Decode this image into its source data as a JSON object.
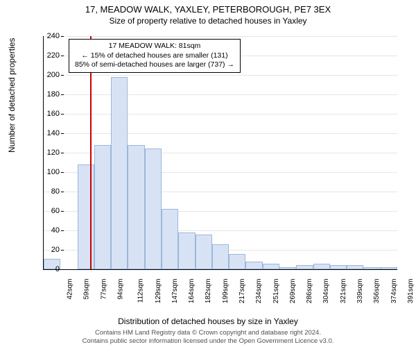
{
  "title_line1": "17, MEADOW WALK, YAXLEY, PETERBOROUGH, PE7 3EX",
  "title_line2": "Size of property relative to detached houses in Yaxley",
  "ylabel": "Number of detached properties",
  "xlabel": "Distribution of detached houses by size in Yaxley",
  "annotation": {
    "line1": "17 MEADOW WALK: 81sqm",
    "line2": "← 15% of detached houses are smaller (131)",
    "line3": "85% of semi-detached houses are larger (737) →"
  },
  "footer": {
    "line1": "Contains HM Land Registry data © Crown copyright and database right 2024.",
    "line2": "Contains public sector information licensed under the Open Government Licence v3.0."
  },
  "chart": {
    "type": "histogram",
    "ylim": [
      0,
      240
    ],
    "ytick_step": 20,
    "bar_fill": "#d7e3f4",
    "bar_border": "#9db6da",
    "ref_line_color": "#cc0000",
    "ref_line_at_sqm": 81,
    "background_color": "#ffffff",
    "grid_color": "#e6e6e6",
    "x_start_sqm": 33,
    "x_bin_width_sqm": 17.5,
    "x_labels": [
      "42sqm",
      "59sqm",
      "77sqm",
      "94sqm",
      "112sqm",
      "129sqm",
      "147sqm",
      "164sqm",
      "182sqm",
      "199sqm",
      "217sqm",
      "234sqm",
      "251sqm",
      "269sqm",
      "286sqm",
      "304sqm",
      "321sqm",
      "339sqm",
      "356sqm",
      "374sqm",
      "391sqm"
    ],
    "values": [
      11,
      0,
      108,
      128,
      198,
      128,
      124,
      62,
      38,
      36,
      26,
      16,
      8,
      6,
      2,
      4,
      6,
      4,
      4,
      2,
      2
    ],
    "title_fontsize": 13,
    "label_fontsize": 12,
    "tick_fontsize": 11
  }
}
